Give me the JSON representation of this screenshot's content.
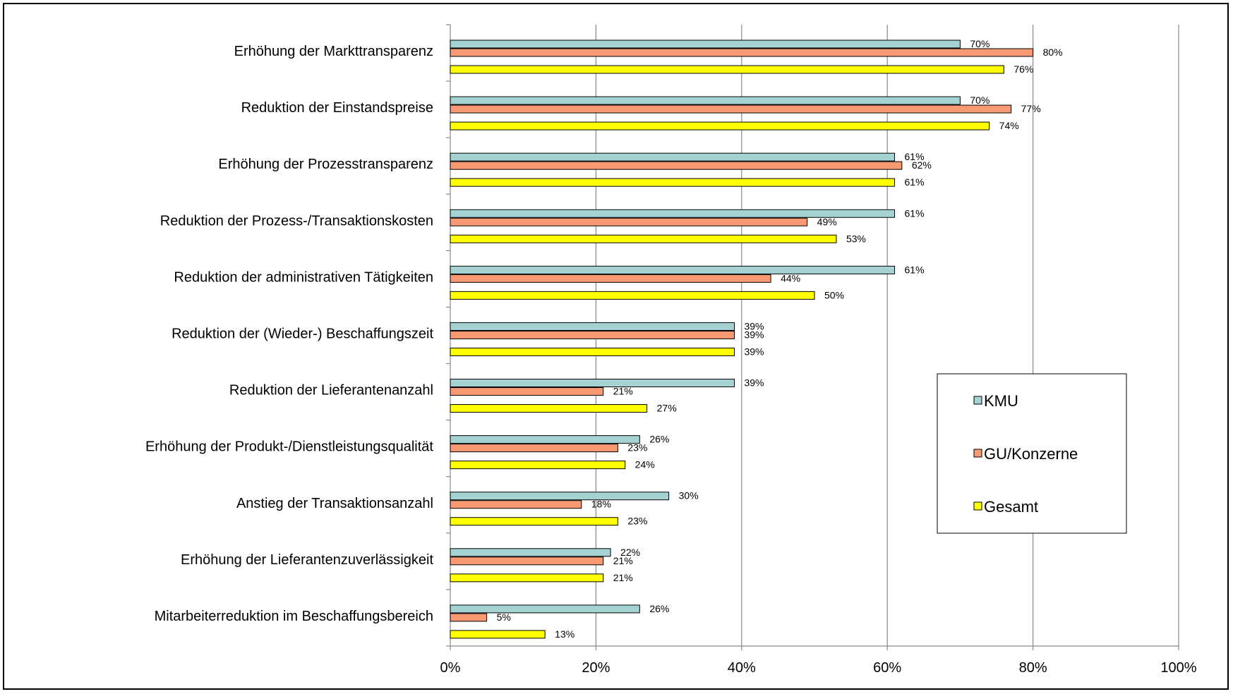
{
  "chart_data": {
    "type": "bar",
    "orientation": "horizontal",
    "title": "",
    "xlabel": "",
    "ylabel": "",
    "xlim": [
      0,
      100
    ],
    "x_ticks": [
      "0%",
      "20%",
      "40%",
      "60%",
      "80%",
      "100%"
    ],
    "grid": "vertical",
    "legend_position": "right",
    "categories": [
      "Erhöhung der Markttransparenz",
      "Reduktion der Einstandspreise",
      "Erhöhung der Prozesstransparenz",
      "Reduktion der Prozess-/Transaktionskosten",
      "Reduktion der administrativen Tätigkeiten",
      "Reduktion der (Wieder-) Beschaffungszeit",
      "Reduktion der Lieferantenanzahl",
      "Erhöhung der Produkt-/Dienstleistungsqualität",
      "Anstieg der Transaktionsanzahl",
      "Erhöhung der Lieferantenzuverlässigkeit",
      "Mitarbeiterreduktion im Beschaffungsbereich"
    ],
    "series": [
      {
        "name": "KMU",
        "color": "#a5d2d2",
        "values": [
          70,
          70,
          61,
          61,
          61,
          39,
          39,
          26,
          30,
          22,
          26
        ],
        "labels": [
          "70%",
          "70%",
          "61%",
          "61%",
          "61%",
          "39%",
          "39%",
          "26%",
          "30%",
          "22%",
          "26%"
        ]
      },
      {
        "name": "GU/Konzerne",
        "color": "#f79a73",
        "values": [
          80,
          77,
          62,
          49,
          44,
          39,
          21,
          23,
          18,
          21,
          5
        ],
        "labels": [
          "80%",
          "77%",
          "62%",
          "49%",
          "44%",
          "39%",
          "21%",
          "23%",
          "18%",
          "21%",
          "5%"
        ]
      },
      {
        "name": "Gesamt",
        "color": "#ffff00",
        "values": [
          76,
          74,
          61,
          53,
          50,
          39,
          27,
          24,
          23,
          21,
          13
        ],
        "labels": [
          "76%",
          "74%",
          "61%",
          "53%",
          "50%",
          "39%",
          "27%",
          "24%",
          "23%",
          "21%",
          "13%"
        ]
      }
    ]
  }
}
